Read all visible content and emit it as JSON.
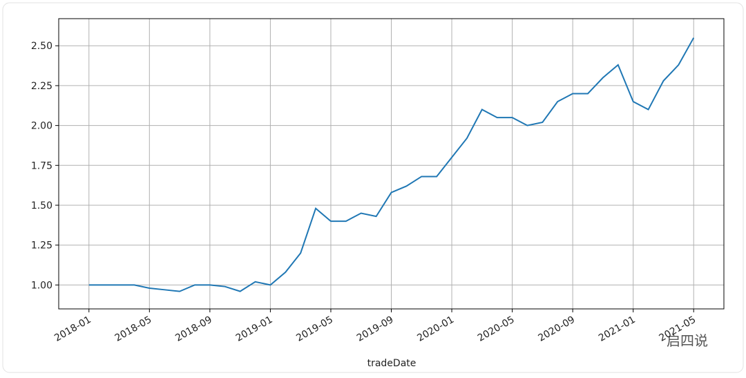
{
  "chart_data": {
    "type": "line",
    "x_label": "tradeDate",
    "watermark": "启四说",
    "x": [
      "2018-01",
      "2018-02",
      "2018-03",
      "2018-04",
      "2018-05",
      "2018-06",
      "2018-07",
      "2018-08",
      "2018-09",
      "2018-10",
      "2018-11",
      "2018-12",
      "2019-01",
      "2019-02",
      "2019-03",
      "2019-04",
      "2019-05",
      "2019-06",
      "2019-07",
      "2019-08",
      "2019-09",
      "2019-10",
      "2019-11",
      "2019-12",
      "2020-01",
      "2020-02",
      "2020-03",
      "2020-04",
      "2020-05",
      "2020-06",
      "2020-07",
      "2020-08",
      "2020-09",
      "2020-10",
      "2020-11",
      "2020-12",
      "2021-01",
      "2021-02",
      "2021-03",
      "2021-04",
      "2021-05"
    ],
    "series": [
      {
        "color": "#1f77b4",
        "values": [
          1.0,
          1.0,
          1.0,
          1.0,
          0.98,
          0.97,
          0.96,
          1.0,
          1.0,
          0.99,
          0.96,
          1.02,
          1.0,
          1.08,
          1.2,
          1.48,
          1.4,
          1.4,
          1.45,
          1.43,
          1.58,
          1.62,
          1.68,
          1.68,
          1.8,
          1.92,
          2.1,
          2.05,
          2.05,
          2.0,
          2.02,
          2.15,
          2.2,
          2.2,
          2.3,
          2.38,
          2.15,
          2.1,
          2.28,
          2.38,
          2.55
        ]
      }
    ],
    "xlim": [
      "2017-11",
      "2021-07"
    ],
    "xticks": [
      "2018-01",
      "2018-05",
      "2018-09",
      "2019-01",
      "2019-05",
      "2019-09",
      "2020-01",
      "2020-05",
      "2020-09",
      "2021-01",
      "2021-05"
    ],
    "ylim": [
      0.85,
      2.67
    ],
    "yticks": [
      {
        "value": 1.0,
        "label": "1.00"
      },
      {
        "value": 1.25,
        "label": "1.25"
      },
      {
        "value": 1.5,
        "label": "1.50"
      },
      {
        "value": 1.75,
        "label": "1.75"
      },
      {
        "value": 2.0,
        "label": "2.00"
      },
      {
        "value": 2.25,
        "label": "2.25"
      },
      {
        "value": 2.5,
        "label": "2.50"
      }
    ],
    "grid": true
  }
}
